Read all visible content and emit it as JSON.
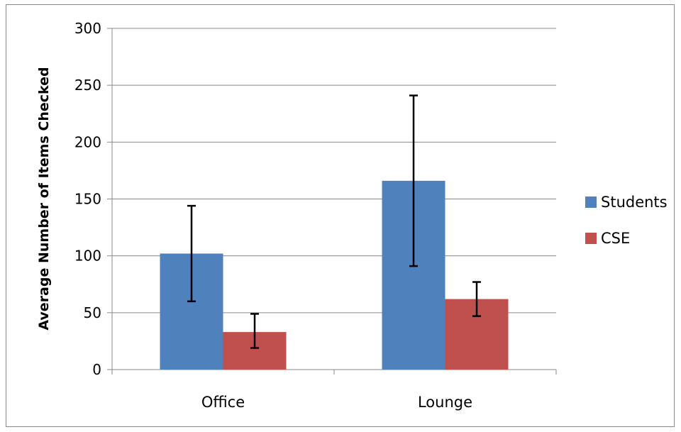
{
  "chart_data": {
    "type": "bar",
    "title": "",
    "xlabel": "",
    "ylabel": "Average Number of Items Checked",
    "categories": [
      "Office",
      "Lounge"
    ],
    "series": [
      {
        "name": "Students",
        "color": "#4f81bd",
        "values": [
          102,
          166
        ],
        "error_low": [
          60,
          91
        ],
        "error_high": [
          144,
          241
        ]
      },
      {
        "name": "CSE",
        "color": "#c0504d",
        "values": [
          33,
          62
        ],
        "error_low": [
          19,
          47
        ],
        "error_high": [
          49,
          77
        ]
      }
    ],
    "ylim": [
      0,
      300
    ],
    "yticks": [
      "0",
      "50",
      "100",
      "150",
      "200",
      "250",
      "300"
    ],
    "grid": true,
    "legend_position": "right"
  }
}
